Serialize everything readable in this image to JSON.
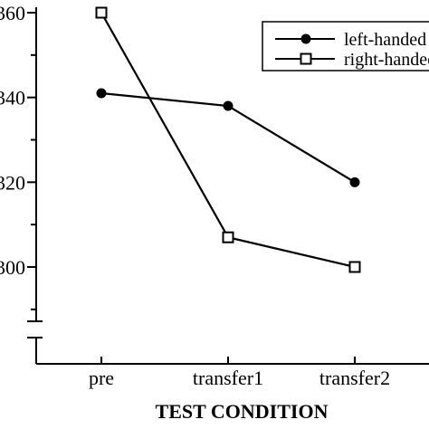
{
  "chart_data": {
    "type": "line",
    "title": "",
    "xlabel": "TEST CONDITION",
    "ylabel": "",
    "categories": [
      "pre",
      "transfer1",
      "transfer2"
    ],
    "ylim": [
      280,
      360
    ],
    "axis_break": true,
    "y_ticks": [
      300,
      320,
      340,
      360
    ],
    "y_tick_labels": [
      "300",
      "320",
      "340",
      "360"
    ],
    "grid": false,
    "legend_position": "top-right",
    "series": [
      {
        "name": "left-handed",
        "marker": "filled-circle",
        "color": "#000000",
        "values": [
          341,
          338,
          320
        ]
      },
      {
        "name": "right-handed",
        "marker": "open-square",
        "color": "#000000",
        "values": [
          360,
          307,
          300
        ]
      }
    ]
  }
}
